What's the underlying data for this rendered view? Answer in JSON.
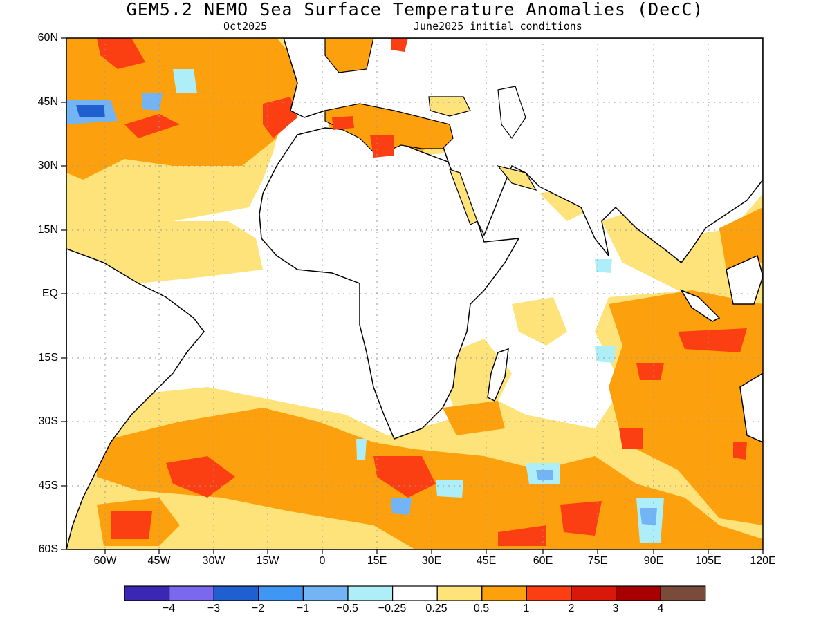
{
  "title": "GEM5.2_NEMO Sea Surface Temperature Anomalies (DecC)",
  "subtitle_left": "Oct2025",
  "subtitle_right": "June2025 initial conditions",
  "lat_labels": [
    "60N",
    "45N",
    "30N",
    "15N",
    "EQ",
    "15S",
    "30S",
    "45S",
    "60S"
  ],
  "lon_labels": [
    "60W",
    "45W",
    "30W",
    "15W",
    "0",
    "15E",
    "30E",
    "45E",
    "60E",
    "75E",
    "90E",
    "105E",
    "120E"
  ],
  "colorbar": {
    "colors": [
      "#3a27b3",
      "#7b68ee",
      "#1f5fcf",
      "#3f97f3",
      "#73b4f5",
      "#aeeef8",
      "#ffffff",
      "#fee27a",
      "#fda00e",
      "#fb3f12",
      "#d81808",
      "#a80000",
      "#7a4a3a"
    ],
    "labels": [
      "−4",
      "−3",
      "−2",
      "−1",
      "−0.5",
      "−0.25",
      "0.25",
      "0.5",
      "1",
      "2",
      "3",
      "4"
    ]
  }
}
